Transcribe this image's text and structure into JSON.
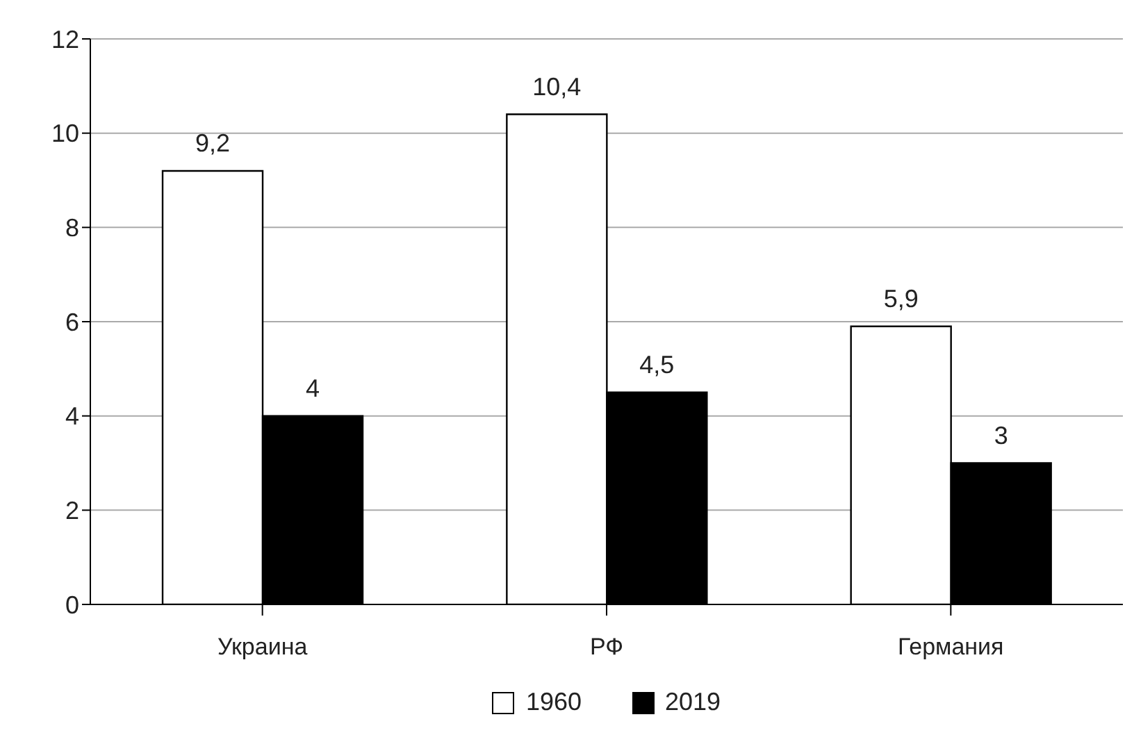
{
  "chart_data": {
    "type": "bar",
    "categories": [
      "Украина",
      "РФ",
      "Германия"
    ],
    "series": [
      {
        "name": "1960",
        "color": "#ffffff",
        "values": [
          9.2,
          10.4,
          5.9
        ],
        "value_labels": [
          "9,2",
          "10,4",
          "5,9"
        ]
      },
      {
        "name": "2019",
        "color": "#000000",
        "values": [
          4,
          4.5,
          3
        ],
        "value_labels": [
          "4",
          "4,5",
          "3"
        ]
      }
    ],
    "ylim": [
      0,
      12
    ],
    "yticks": [
      0,
      2,
      4,
      6,
      8,
      10,
      12
    ],
    "grid": "y",
    "legend": "bottom"
  }
}
